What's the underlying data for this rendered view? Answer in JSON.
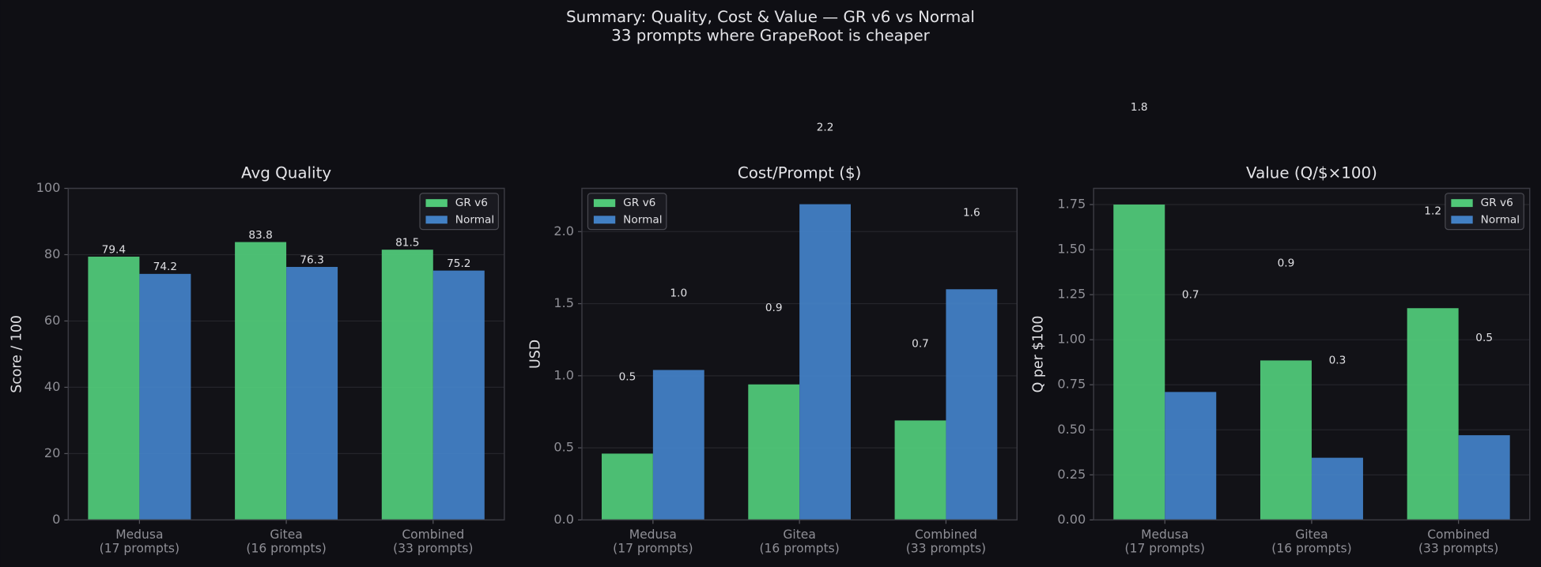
{
  "title": "Summary: Quality, Cost & Value — GR v6 vs Normal",
  "subtitle": "33 prompts where GrapeRoot is cheaper",
  "chart_data": [
    {
      "type": "bar",
      "title": "Avg Quality",
      "y_label": "Score / 100",
      "categories": [
        "Medusa\n(17 prompts)",
        "Gitea\n(16 prompts)",
        "Combined\n(33 prompts)"
      ],
      "series": [
        {
          "name": "GR v6",
          "color": "#50c878",
          "values": [
            79.4,
            83.8,
            81.5
          ]
        },
        {
          "name": "Normal",
          "color": "#4280c4",
          "values": [
            74.2,
            76.3,
            75.2
          ]
        }
      ],
      "ylim": [
        0,
        100
      ],
      "yticks": [
        0,
        20,
        40,
        60,
        80,
        100
      ],
      "grid": true,
      "legend": "upper right"
    },
    {
      "type": "bar",
      "title": "Cost/Prompt ($)",
      "y_label": "USD",
      "categories": [
        "Medusa\n(17 prompts)",
        "Gitea\n(16 prompts)",
        "Combined\n(33 prompts)"
      ],
      "series": [
        {
          "name": "GR v6",
          "color": "#50c878",
          "values": [
            0.46,
            0.94,
            0.69
          ],
          "value_labels": [
            "0.5",
            "0.9",
            "0.7"
          ]
        },
        {
          "name": "Normal",
          "color": "#4280c4",
          "values": [
            1.04,
            2.19,
            1.6
          ],
          "value_labels": [
            "1.0",
            "2.2",
            "1.6"
          ]
        }
      ],
      "ylim": [
        0,
        2.3
      ],
      "yticks": [
        {
          "value": 0,
          "label": "0.0"
        },
        0.5,
        {
          "value": 1,
          "label": "1.0"
        },
        1.5,
        {
          "value": 2,
          "label": "2.0"
        }
      ],
      "grid": true,
      "legend": "upper left"
    },
    {
      "type": "bar",
      "title": "Value (Q/$×100)",
      "y_label": "Q per $100",
      "categories": [
        "Medusa\n(17 prompts)",
        "Gitea\n(16 prompts)",
        "Combined\n(33 prompts)"
      ],
      "series": [
        {
          "name": "GR v6",
          "color": "#50c878",
          "values": [
            1.75,
            0.885,
            1.175
          ],
          "value_labels": [
            "1.8",
            "0.9",
            "1.2"
          ]
        },
        {
          "name": "Normal",
          "color": "#4280c4",
          "values": [
            0.71,
            0.345,
            0.47
          ],
          "value_labels": [
            "0.7",
            "0.3",
            "0.5"
          ]
        }
      ],
      "ylim": [
        0,
        1.84
      ],
      "yticks": [
        {
          "value": 0,
          "label": "0.00"
        },
        0.25,
        {
          "value": 0.5,
          "label": "0.50"
        },
        0.75,
        {
          "value": 1,
          "label": "1.00"
        },
        1.25,
        {
          "value": 1.5,
          "label": "1.50"
        },
        1.75
      ],
      "grid": true,
      "legend": "upper right"
    }
  ]
}
